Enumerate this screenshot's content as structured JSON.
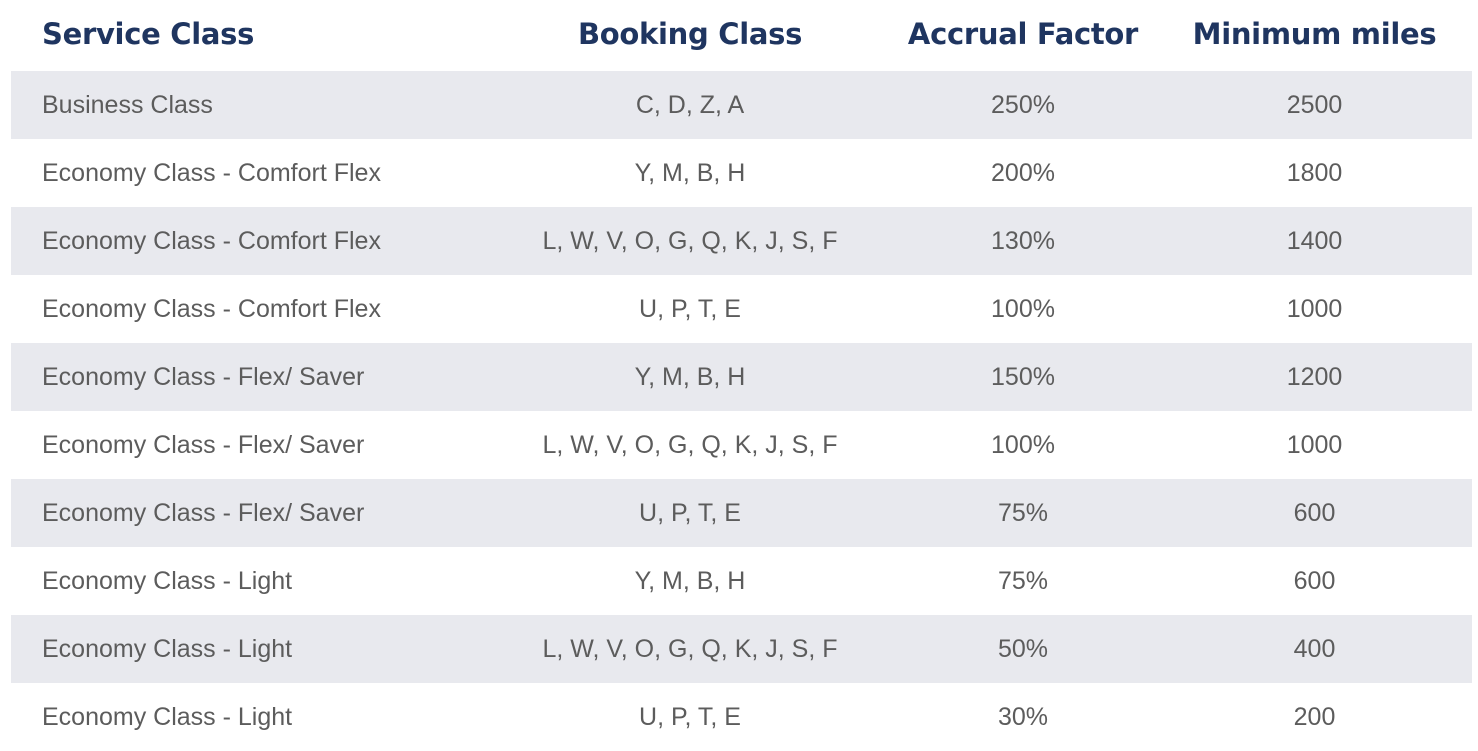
{
  "table": {
    "headers": [
      "Service Class",
      "Booking Class",
      "Accrual Factor",
      "Minimum miles"
    ],
    "rows": [
      [
        "Business Class",
        "C, D, Z, A",
        "250%",
        "2500"
      ],
      [
        "Economy Class - Comfort Flex",
        "Y, M, B, H",
        "200%",
        "1800"
      ],
      [
        "Economy Class - Comfort Flex",
        "L, W, V, O, G, Q, K, J, S, F",
        "130%",
        "1400"
      ],
      [
        "Economy Class - Comfort Flex",
        "U, P, T, E",
        "100%",
        "1000"
      ],
      [
        "Economy Class - Flex/ Saver",
        "Y, M, B, H",
        "150%",
        "1200"
      ],
      [
        "Economy Class - Flex/ Saver",
        "L, W, V, O, G, Q, K, J, S, F",
        "100%",
        "1000"
      ],
      [
        "Economy Class - Flex/ Saver",
        "U, P, T, E",
        "75%",
        "600"
      ],
      [
        "Economy Class - Light",
        "Y, M, B, H",
        "75%",
        "600"
      ],
      [
        "Economy Class - Light",
        "L, W, V, O, G, Q, K, J, S, F",
        "50%",
        "400"
      ],
      [
        "Economy Class - Light",
        "U, P, T, E",
        "30%",
        "200"
      ]
    ]
  },
  "colors": {
    "header_text": "#1f3560",
    "body_text": "#5c5c5c",
    "row_shade": "#e8e9ee",
    "row_plain": "#ffffff"
  }
}
